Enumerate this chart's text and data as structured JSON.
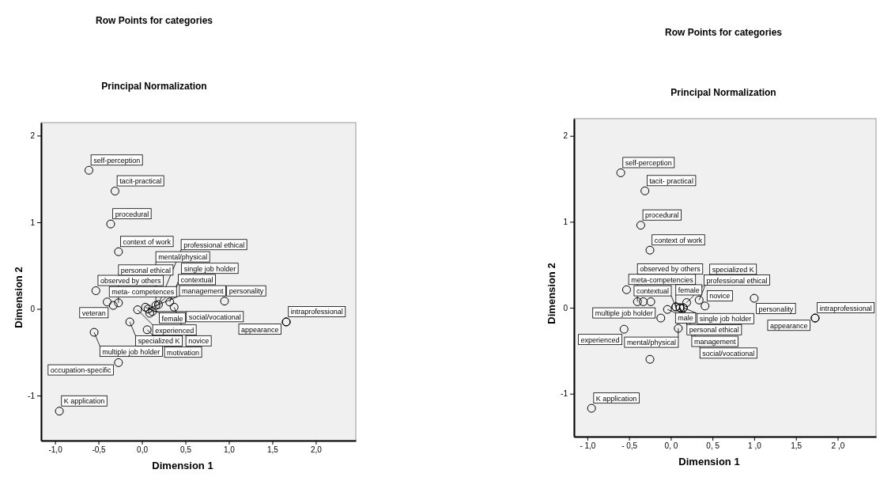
{
  "chart_data": [
    {
      "type": "scatter",
      "title": "Row Points for categories",
      "subtitle": "Principal Normalization",
      "xlabel": "Dimension 1",
      "ylabel": "Dimension 2",
      "marker": "circle",
      "xlim": [
        -1.16,
        2.46
      ],
      "ylim": [
        -1.52,
        2.15
      ],
      "xticks": [
        {
          "value": -1,
          "label": "-1,0"
        },
        {
          "value": -0.5,
          "label": "-0,5"
        },
        {
          "value": 0,
          "label": "0,0"
        },
        {
          "value": 0.5,
          "label": "0,5"
        },
        {
          "value": 1,
          "label": "1,0"
        },
        {
          "value": 1.5,
          "label": "1,5"
        },
        {
          "value": 2,
          "label": "2,0"
        }
      ],
      "yticks": [
        -1,
        0,
        1,
        2
      ],
      "series": [
        {
          "color": "#000000",
          "x": [
            -0.61,
            -0.31,
            -0.36,
            -0.27,
            -0.53,
            -0.4,
            -0.33,
            -0.27,
            -0.05,
            0.04,
            -0.14,
            -0.55,
            0.07,
            0.06,
            0.12,
            0.09,
            0.16,
            0.32,
            0.37,
            0.95,
            1.66,
            1.66,
            0.19,
            -0.27,
            -0.95
          ],
          "values": [
            1.6,
            1.36,
            0.98,
            0.66,
            0.21,
            0.08,
            0.04,
            0.07,
            -0.01,
            0.02,
            -0.15,
            -0.27,
            0,
            -0.24,
            -0.03,
            -0.05,
            0.04,
            0.08,
            0.02,
            0.09,
            -0.15,
            -0.15,
            0.05,
            -0.62,
            -1.18
          ],
          "value_labels": [
            "self-perception",
            "tacit-practical",
            "procedural",
            "context of work",
            "observed by others",
            "meta- competences",
            "veteran",
            "personal ethical",
            "experienced",
            "female",
            "specialized K",
            "multiple job holder",
            "management",
            "motivation",
            "social/vocational",
            "contextual",
            "mental/physical",
            "single job holder",
            "novice",
            "personality",
            "intraprofessional",
            "appearance",
            "professional ethical",
            "occupation-specific",
            "K application"
          ]
        }
      ]
    },
    {
      "type": "scatter",
      "title": "Row Points for categories",
      "subtitle": "Principal Normalization",
      "xlabel": "Dimension 1",
      "ylabel": "Dimension 2",
      "marker": "circle",
      "xlim": [
        -1.16,
        2.46
      ],
      "ylim": [
        -1.5,
        2.2
      ],
      "xticks": [
        {
          "value": -1,
          "label": "- 1,0"
        },
        {
          "value": -0.5,
          "label": "- 0,5"
        },
        {
          "value": 0,
          "label": "0, 0"
        },
        {
          "value": 0.5,
          "label": "0, 5"
        },
        {
          "value": 1,
          "label": "1 ,0"
        },
        {
          "value": 1.5,
          "label": "1,5"
        },
        {
          "value": 2,
          "label": "2 ,0"
        }
      ],
      "yticks": [
        -1,
        0,
        1,
        2
      ],
      "series": [
        {
          "color": "#000000",
          "x": [
            -0.6,
            -0.31,
            -0.36,
            -0.25,
            -0.53,
            -0.4,
            -0.33,
            -0.24,
            -0.04,
            0.06,
            0.11,
            0.15,
            0.19,
            0.34,
            0.41,
            1,
            1.73,
            1.73,
            -0.12,
            -0.56,
            0.09,
            0.11,
            0.15,
            0.06,
            -0.25,
            -0.95
          ],
          "values": [
            1.57,
            1.36,
            0.96,
            0.67,
            0.21,
            0.07,
            0.07,
            0.07,
            -0.02,
            0.01,
            0,
            0,
            0.06,
            0.09,
            0.02,
            0.11,
            -0.12,
            -0.12,
            -0.12,
            -0.25,
            -0.24,
            0,
            0,
            0.01,
            -0.6,
            -1.17
          ],
          "value_labels": [
            "self-perception",
            "tacit- practical",
            "procedural",
            "context of work",
            "meta-competencies",
            "observed by others",
            null,
            null,
            "male",
            "female",
            "personal ethical",
            "single job holder",
            "professional ethical",
            "specialized K",
            "novice",
            "personality",
            "intraprofessional",
            "appearance",
            "multiple job holder",
            "experienced",
            "mental/physical",
            "management",
            "social/vocational",
            "contextual",
            null,
            "K application"
          ]
        }
      ]
    }
  ]
}
